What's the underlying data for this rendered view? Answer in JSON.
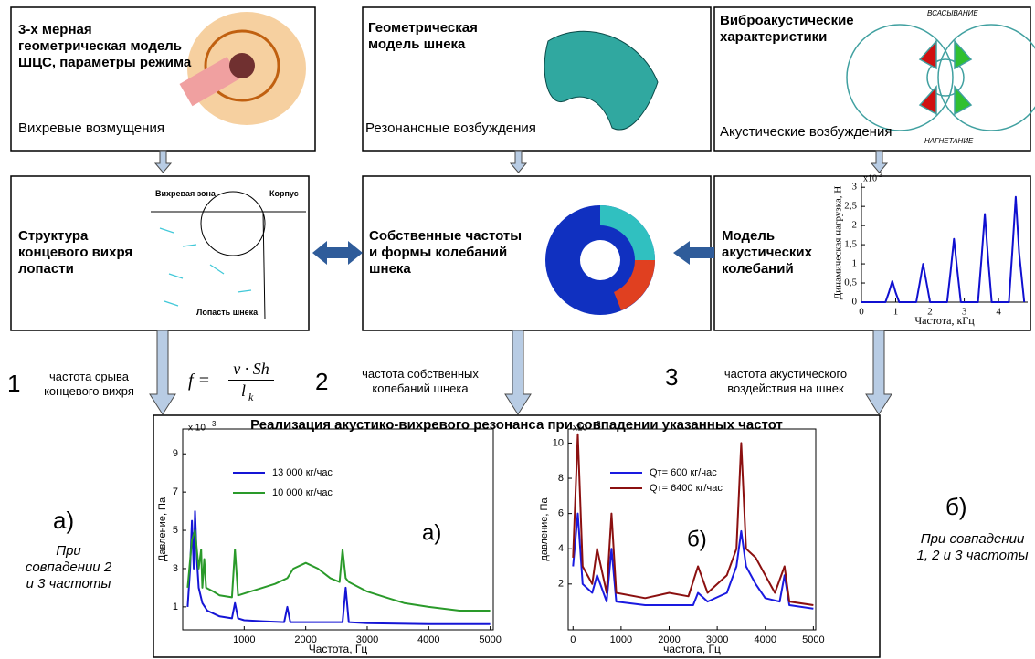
{
  "top": {
    "model": {
      "title": "3-х мерная геометрическая модель ШЦС, параметры режима",
      "note": "Вихревые возмущения"
    },
    "screw": {
      "title": "Геометрическая модель шнека",
      "note": "Резонансные возбуждения"
    },
    "vibro": {
      "title": "Виброакустические характеристики",
      "note": "Акустические возбуждения",
      "suction": "ВСАСЫВАНИЕ",
      "discharge": "НАГНЕТАНИЕ"
    }
  },
  "middle": {
    "vortex": {
      "title": "Структура концевого вихря лопасти",
      "zone": "Вихревая зона",
      "casing": "Корпус",
      "blade": "Лопасть шнека"
    },
    "modes": {
      "title": "Собственные частоты и формы колебаний шнека"
    },
    "acoustic": {
      "title": "Модель акустических колебаний"
    }
  },
  "links": [
    {
      "number": "1",
      "text": "частота срыва концевого вихря"
    },
    {
      "number": "2",
      "text": "частота собственных колебаний шнека"
    },
    {
      "number": "3",
      "text": "частота акустического воздействия на шнек"
    }
  ],
  "formula": {
    "lhs": "f =",
    "numerator": "v · Sh",
    "denominator": "l",
    "subscript": "k"
  },
  "result": {
    "title": "Реализация акустико-вихревого резонанса при совпадении указанных частот"
  },
  "side_left": {
    "label": "а)",
    "text": "При совпадении 2 и 3 частоты"
  },
  "side_right": {
    "label": "б)",
    "text": "При совпадении 1, 2 и 3 частоты"
  },
  "charts": [
    {
      "type": "line",
      "y_label": "Динамическая нагрузка, Н",
      "x_label": "Частота, кГц",
      "multiplier": "x10",
      "power": "3",
      "xlim": [
        0,
        4.85
      ],
      "ylim": [
        0,
        3.1
      ],
      "xticks": [
        0,
        1,
        2,
        3,
        4
      ],
      "yticks": [
        0,
        {
          "value": 0.5,
          "label": "0,5"
        },
        1,
        {
          "value": 1.5,
          "label": "1,5"
        },
        2,
        {
          "value": 2.5,
          "label": "2,5"
        },
        3
      ],
      "series": [
        {
          "color": "#1010d0",
          "x": [
            0,
            0.7,
            0.8,
            0.9,
            1.0,
            1.1,
            1.6,
            1.7,
            1.8,
            1.9,
            2.0,
            2.5,
            2.6,
            2.7,
            2.8,
            2.9,
            3.4,
            3.5,
            3.6,
            3.7,
            3.8,
            4.3,
            4.4,
            4.5,
            4.6,
            4.75
          ],
          "values": [
            0,
            0,
            0.25,
            0.55,
            0.25,
            0,
            0,
            0.5,
            1.0,
            0.5,
            0,
            0,
            0.8,
            1.65,
            0.8,
            0,
            0,
            1.1,
            2.3,
            1.1,
            0,
            0,
            1.3,
            2.75,
            1.3,
            0
          ]
        }
      ]
    },
    {
      "type": "line",
      "y_label": "Давление, Па",
      "x_label": "Частота, Гц",
      "multiplier": "x 10",
      "power": "3",
      "panel": "а)",
      "xlim": [
        0,
        5050
      ],
      "ylim": [
        -0.2,
        10.3
      ],
      "xticks": [
        1000,
        2000,
        3000,
        4000,
        5000
      ],
      "yticks": [
        1,
        3,
        5,
        7,
        9
      ],
      "series": [
        {
          "name": "13 000 кг/час",
          "color": "#1515d5",
          "x": [
            80,
            120,
            150,
            180,
            200,
            230,
            260,
            320,
            400,
            600,
            800,
            850,
            900,
            1000,
            1300,
            1650,
            1700,
            1750,
            2000,
            2600,
            2650,
            2700,
            3000,
            4000,
            5000
          ],
          "values": [
            1,
            3,
            5.5,
            3,
            6,
            3.5,
            2,
            1.2,
            0.8,
            0.5,
            0.4,
            1.2,
            0.4,
            0.3,
            0.25,
            0.2,
            1,
            0.2,
            0.2,
            0.2,
            2,
            0.2,
            0.15,
            0.1,
            0.1
          ]
        },
        {
          "name": "10 000 кг/час",
          "color": "#2a9a2a",
          "x": [
            80,
            150,
            200,
            260,
            300,
            320,
            350,
            380,
            500,
            600,
            800,
            850,
            900,
            1100,
            1300,
            1500,
            1700,
            1800,
            2000,
            2200,
            2400,
            2550,
            2600,
            2650,
            2700,
            3000,
            3300,
            3600,
            4000,
            4500,
            5000
          ],
          "values": [
            2,
            4.5,
            5,
            3,
            4,
            2,
            3.5,
            2,
            1.8,
            1.6,
            1.5,
            4,
            1.6,
            1.8,
            2,
            2.2,
            2.5,
            3,
            3.3,
            3,
            2.5,
            2.3,
            4,
            2.5,
            2.3,
            1.8,
            1.5,
            1.2,
            1,
            0.8,
            0.8
          ]
        }
      ]
    },
    {
      "type": "line",
      "y_label": "давление, Па",
      "x_label": "частота, Гц",
      "multiplier": "x10",
      "power": "3",
      "panel": "б)",
      "xlim": [
        -100,
        5050
      ],
      "ylim": [
        -0.6,
        10.8
      ],
      "xticks": [
        0,
        1000,
        2000,
        3000,
        4000,
        5000
      ],
      "yticks": [
        2,
        4,
        6,
        8,
        10
      ],
      "series": [
        {
          "name": "Qт= 600 кг/час",
          "color": "#1a1ae0",
          "x": [
            0,
            100,
            200,
            400,
            500,
            700,
            800,
            900,
            1500,
            2500,
            2600,
            2800,
            3200,
            3400,
            3500,
            3600,
            3800,
            4000,
            4300,
            4400,
            4500,
            5000
          ],
          "values": [
            3,
            6,
            2,
            1.5,
            2.5,
            1,
            4,
            1,
            0.8,
            0.8,
            1.5,
            1,
            1.5,
            3,
            5,
            3,
            2,
            1.2,
            1,
            2.5,
            0.8,
            0.6
          ]
        },
        {
          "name": "Qт= 6400 кг/час",
          "color": "#8b1010",
          "x": [
            0,
            100,
            200,
            400,
            500,
            700,
            800,
            900,
            1500,
            2000,
            2400,
            2600,
            2800,
            3200,
            3400,
            3500,
            3600,
            3800,
            4000,
            4200,
            4400,
            4500,
            5000
          ],
          "values": [
            3.5,
            10.5,
            3,
            2,
            4,
            1.5,
            6,
            1.5,
            1.2,
            1.5,
            1.3,
            3,
            1.5,
            2.5,
            4,
            10,
            4,
            3.5,
            2.5,
            1.5,
            3,
            1,
            0.8
          ]
        }
      ]
    }
  ]
}
